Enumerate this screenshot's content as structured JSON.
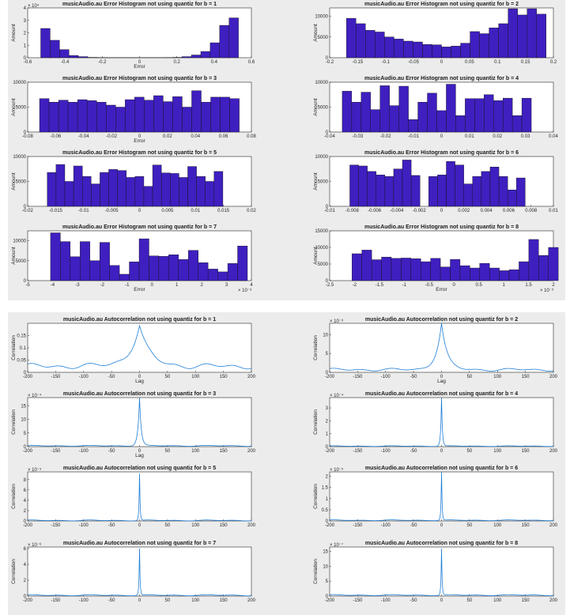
{
  "theme": {
    "bar_color": "#3f1fbf",
    "line_color": "#1f7ed6",
    "panel_bg": "#ececec"
  },
  "chart_data": [
    {
      "type": "bar",
      "title": "musicAudio.au Error Histogram not using quantiz for b = 1",
      "xlabel": "Error",
      "ylabel": "Amount",
      "xlim": [
        -0.6,
        0.6
      ],
      "ylim": [
        0,
        40000
      ],
      "yexp": "× 10⁴",
      "xexp": "",
      "xticks": [
        -0.6,
        -0.4,
        -0.2,
        0,
        0.2,
        0.4,
        0.6
      ],
      "yticks": [
        0,
        10000,
        20000,
        30000,
        40000
      ],
      "yticklabels": [
        "0",
        "1",
        "2",
        "3",
        "4"
      ],
      "xticklabels": [
        "-0.6",
        "-0.4",
        "-0.2",
        "0",
        "0.2",
        "0.4",
        "0.6"
      ],
      "bin_start": -0.53,
      "bin_width": 0.0505,
      "values": [
        23500,
        14000,
        6500,
        1800,
        900,
        300,
        150,
        100,
        100,
        100,
        100,
        100,
        100,
        150,
        300,
        900,
        2200,
        5000,
        12000,
        26000,
        32000
      ]
    },
    {
      "type": "bar",
      "title": "musicAudio.au Error Histogram not using quantiz for b = 2",
      "xlabel": "",
      "ylabel": "Amount",
      "xlim": [
        -0.2,
        0.2
      ],
      "ylim": [
        0,
        12000
      ],
      "yexp": "",
      "xexp": "",
      "xticks": [
        -0.2,
        -0.15,
        -0.1,
        -0.05,
        0,
        0.05,
        0.1,
        0.15,
        0.2
      ],
      "yticks": [
        0,
        5000,
        10000
      ],
      "yticklabels": [
        "0",
        "5000",
        "10000"
      ],
      "xticklabels": [
        "-0.2",
        "-0.15",
        "-0.1",
        "-0.05",
        "0",
        "0.05",
        "0.1",
        "0.15",
        "0.2"
      ],
      "bin_start": -0.17,
      "bin_width": 0.017,
      "values": [
        9500,
        8200,
        6600,
        6200,
        5000,
        4500,
        4000,
        3800,
        3200,
        3100,
        2600,
        2800,
        3500,
        6300,
        5800,
        7200,
        8200,
        11800,
        10300,
        11800,
        10500
      ]
    },
    {
      "type": "bar",
      "title": "musicAudio.au Error Histogram not using quantiz for b = 3",
      "xlabel": "Error",
      "ylabel": "Amount",
      "xlim": [
        -0.08,
        0.08
      ],
      "ylim": [
        0,
        10000
      ],
      "yexp": "",
      "xexp": "",
      "xticks": [
        -0.08,
        -0.06,
        -0.04,
        -0.02,
        0,
        0.02,
        0.04,
        0.06,
        0.08
      ],
      "yticks": [
        0,
        5000,
        10000
      ],
      "yticklabels": [
        "0",
        "5000",
        "10000"
      ],
      "xticklabels": [
        "-0.08",
        "-0.06",
        "-0.04",
        "-0.02",
        "0",
        "0.02",
        "0.04",
        "0.06",
        "0.08"
      ],
      "bin_start": -0.0715,
      "bin_width": 0.0068,
      "values": [
        6700,
        6000,
        6400,
        6000,
        6500,
        6300,
        6000,
        5400,
        5000,
        6500,
        7000,
        6400,
        7300,
        6100,
        7100,
        5000,
        8300,
        6000,
        7000,
        7000,
        6700
      ]
    },
    {
      "type": "bar",
      "title": "musicAudio.au Error Histogram not using quantiz for b = 4",
      "xlabel": "",
      "ylabel": "Amount",
      "xlim": [
        -0.04,
        0.04
      ],
      "ylim": [
        0,
        10000
      ],
      "yexp": "",
      "xexp": "",
      "xticks": [
        -0.04,
        -0.03,
        -0.02,
        -0.01,
        0,
        0.01,
        0.02,
        0.03,
        0.04
      ],
      "yticks": [
        0,
        5000,
        10000
      ],
      "yticklabels": [
        "0",
        "5000",
        "10000"
      ],
      "xticklabels": [
        "-0.04",
        "-0.03",
        "-0.02",
        "-0.01",
        "0",
        "0.01",
        "0.02",
        "0.03",
        "0.04"
      ],
      "bin_start": -0.0355,
      "bin_width": 0.00338,
      "values": [
        8200,
        6000,
        8000,
        4500,
        9300,
        5300,
        9200,
        2500,
        6000,
        7800,
        4300,
        9600,
        3300,
        6700,
        6700,
        7500,
        6300,
        6800,
        3300,
        6800,
        0
      ]
    },
    {
      "type": "bar",
      "title": "musicAudio.au Error Histogram not using quantiz for b = 5",
      "xlabel": "",
      "ylabel": "Amount",
      "xlim": [
        -0.02,
        0.02
      ],
      "ylim": [
        0,
        10000
      ],
      "yexp": "",
      "xexp": "",
      "xticks": [
        -0.02,
        -0.015,
        -0.01,
        -0.005,
        0,
        0.005,
        0.01,
        0.015,
        0.02
      ],
      "yticks": [
        0,
        5000,
        10000
      ],
      "yticklabels": [
        "0",
        "5000",
        "10000"
      ],
      "xticklabels": [
        "-0.02",
        "-0.015",
        "-0.01",
        "-0.005",
        "0",
        "0.005",
        "0.01",
        "0.015",
        "0.02"
      ],
      "bin_start": -0.0165,
      "bin_width": 0.00157,
      "values": [
        6800,
        8400,
        5000,
        8100,
        6000,
        4500,
        6800,
        7400,
        7200,
        5800,
        6000,
        4000,
        8300,
        6700,
        6600,
        5800,
        8000,
        6000,
        5000,
        7000,
        0
      ]
    },
    {
      "type": "bar",
      "title": "musicAudio.au Error Histogram not using quantiz for b = 6",
      "xlabel": "",
      "ylabel": "Amount",
      "xlim": [
        -0.01,
        0.01
      ],
      "ylim": [
        0,
        10000
      ],
      "yexp": "",
      "xexp": "",
      "xticks": [
        -0.01,
        -0.008,
        -0.006,
        -0.004,
        -0.002,
        0,
        0.002,
        0.004,
        0.006,
        0.008,
        0.01
      ],
      "yticks": [
        0,
        5000,
        10000
      ],
      "yticklabels": [
        "0",
        "5000",
        "10000"
      ],
      "xticklabels": [
        "-0.01",
        "-0.008",
        "-0.006",
        "-0.004",
        "-0.002",
        "0",
        "0.002",
        "0.004",
        "0.006",
        "0.008",
        "0.01"
      ],
      "bin_start": -0.0082,
      "bin_width": 0.000784,
      "values": [
        8300,
        8100,
        7000,
        6300,
        6000,
        7500,
        9300,
        6200,
        0,
        6000,
        6300,
        9000,
        8300,
        4500,
        6000,
        7000,
        7900,
        6000,
        3300,
        5700,
        0
      ]
    },
    {
      "type": "bar",
      "title": "musicAudio.au Error Histogram not using quantiz for b = 7",
      "xlabel": "Error",
      "ylabel": "Amount",
      "xlim": [
        -0.005,
        0.004
      ],
      "ylim": [
        0,
        12500
      ],
      "yexp": "",
      "xexp": "× 10⁻³",
      "xticks": [
        -0.005,
        -0.004,
        -0.003,
        -0.002,
        -0.001,
        0,
        0.001,
        0.002,
        0.003,
        0.004
      ],
      "yticks": [
        0,
        5000,
        10000
      ],
      "yticklabels": [
        "0",
        "5000",
        "10000"
      ],
      "xticklabels": [
        "-5",
        "-4",
        "-3",
        "-2",
        "-1",
        "0",
        "1",
        "2",
        "3",
        "4"
      ],
      "bin_start": -0.00408,
      "bin_width": 0.000396,
      "values": [
        12000,
        9800,
        6000,
        9800,
        5000,
        9600,
        3800,
        1600,
        4700,
        10500,
        6200,
        6100,
        6500,
        5300,
        7600,
        4500,
        2900,
        2200,
        4300,
        8700
      ]
    },
    {
      "type": "bar",
      "title": "musicAudio.au Error Histogram not using quantiz for b = 8",
      "xlabel": "Error",
      "ylabel": "Amount",
      "xlim": [
        -0.0025,
        0.002
      ],
      "ylim": [
        0,
        15000
      ],
      "yexp": "",
      "xexp": "× 10⁻³",
      "xticks": [
        -0.0025,
        -0.002,
        -0.0015,
        -0.001,
        -0.0005,
        0,
        0.0005,
        0.001,
        0.0015,
        0.002
      ],
      "yticks": [
        0,
        5000,
        10000,
        15000
      ],
      "yticklabels": [
        "0",
        "5000",
        "10000",
        "15000"
      ],
      "xticklabels": [
        "-2.5",
        "-2",
        "-1.5",
        "-1",
        "-0.5",
        "0",
        "0.5",
        "1",
        "1.5",
        "2"
      ],
      "bin_start": -0.00205,
      "bin_width": 0.0001975,
      "values": [
        8100,
        9200,
        6300,
        7100,
        6700,
        6800,
        6600,
        5700,
        6700,
        4100,
        6400,
        4500,
        3800,
        5200,
        3800,
        3000,
        3300,
        5700,
        12400,
        7600,
        10000
      ]
    },
    {
      "type": "line",
      "title": "musicAudio.au Autocorrelation not using quantiz for b = 1",
      "xlabel": "Lag",
      "ylabel": "Correlation",
      "xlim": [
        -200,
        200
      ],
      "ylim": [
        0,
        0.2
      ],
      "yexp": "",
      "peak": 0.19,
      "base": 0.025,
      "halfwidth": 18,
      "wobble": 0.012,
      "xticks": [
        -200,
        -150,
        -100,
        -50,
        0,
        50,
        100,
        150,
        200
      ],
      "yticks": [
        0,
        0.05,
        0.1,
        0.15
      ],
      "yticklabels": [
        "0",
        "0.05",
        "0.1",
        "0.15"
      ],
      "xticklabels": [
        "-200",
        "-150",
        "-100",
        "-50",
        "0",
        "50",
        "100",
        "150",
        "200"
      ]
    },
    {
      "type": "line",
      "title": "musicAudio.au Autocorrelation not using quantiz for b = 2",
      "xlabel": "Lag",
      "ylabel": "Correlation",
      "xlim": [
        -200,
        200
      ],
      "ylim": [
        0,
        0.013
      ],
      "yexp": "× 10⁻³",
      "peak": 0.013,
      "base": 0.0007,
      "halfwidth": 10,
      "wobble": 0.0004,
      "xticks": [
        -200,
        -150,
        -100,
        -50,
        0,
        50,
        100,
        150,
        200
      ],
      "yticks": [
        0,
        0.005,
        0.01
      ],
      "yticklabels": [
        "0",
        "5",
        "10"
      ],
      "xticklabels": [
        "-200",
        "-150",
        "-100",
        "-50",
        "0",
        "50",
        "100",
        "150",
        "200"
      ]
    },
    {
      "type": "line",
      "title": "musicAudio.au Autocorrelation not using quantiz for b = 3",
      "xlabel": "Lag",
      "ylabel": "Correlation",
      "xlim": [
        -200,
        200
      ],
      "ylim": [
        0,
        0.0018
      ],
      "yexp": "× 10⁻⁴",
      "peak": 0.0018,
      "base": 3e-05,
      "halfwidth": 3,
      "wobble": 2e-05,
      "xticks": [
        -200,
        -150,
        -100,
        -50,
        0,
        50,
        100,
        150,
        200
      ],
      "yticks": [
        0,
        0.0005,
        0.001,
        0.0015
      ],
      "yticklabels": [
        "0",
        "5",
        "10",
        "15"
      ],
      "xticklabels": [
        "-200",
        "-150",
        "-100",
        "-50",
        "0",
        "50",
        "100",
        "150",
        "200"
      ]
    },
    {
      "type": "line",
      "title": "musicAudio.au Autocorrelation not using quantiz for b = 4",
      "xlabel": "",
      "ylabel": "Correlation",
      "xlim": [
        -200,
        200
      ],
      "ylim": [
        0,
        0.00038
      ],
      "yexp": "× 10⁻⁴",
      "peak": 0.00038,
      "base": 4e-06,
      "halfwidth": 1.5,
      "wobble": 3e-06,
      "xticks": [
        -200,
        -150,
        -100,
        -50,
        0,
        50,
        100,
        150,
        200
      ],
      "yticks": [
        0,
        0.0001,
        0.0002,
        0.0003
      ],
      "yticklabels": [
        "0",
        "1",
        "2",
        "3"
      ],
      "xticklabels": [
        "-200",
        "-150",
        "-100",
        "-50",
        "0",
        "50",
        "100",
        "150",
        "200"
      ]
    },
    {
      "type": "line",
      "title": "musicAudio.au Autocorrelation not using quantiz for b = 5",
      "xlabel": "",
      "ylabel": "Correlation",
      "xlim": [
        -200,
        200
      ],
      "ylim": [
        0,
        9.5e-05
      ],
      "yexp": "× 10⁻⁵",
      "peak": 9.2e-05,
      "base": 1e-06,
      "halfwidth": 1,
      "wobble": 1e-06,
      "xticks": [
        -200,
        -150,
        -100,
        -50,
        0,
        50,
        100,
        150,
        200
      ],
      "yticks": [
        0,
        2e-05,
        4e-05,
        6e-05,
        8e-05
      ],
      "yticklabels": [
        "0",
        "2",
        "4",
        "6",
        "8"
      ],
      "xticklabels": [
        "-200",
        "-150",
        "-100",
        "-50",
        "0",
        "50",
        "100",
        "150",
        "200"
      ]
    },
    {
      "type": "line",
      "title": "musicAudio.au Autocorrelation not using quantiz for b = 6",
      "xlabel": "",
      "ylabel": "Correlation",
      "xlim": [
        -200,
        200
      ],
      "ylim": [
        0,
        2.2e-05
      ],
      "yexp": "× 10⁻⁵",
      "peak": 2.2e-05,
      "base": 3e-07,
      "halfwidth": 1,
      "wobble": 2e-07,
      "xticks": [
        -200,
        -150,
        -100,
        -50,
        0,
        50,
        100,
        150,
        200
      ],
      "yticks": [
        0,
        5e-06,
        1e-05,
        1.5e-05,
        2e-05
      ],
      "yticklabels": [
        "0",
        "0.5",
        "1",
        "1.5",
        "2"
      ],
      "xticklabels": [
        "-200",
        "-150",
        "-100",
        "-50",
        "0",
        "50",
        "100",
        "150",
        "200"
      ]
    },
    {
      "type": "line",
      "title": "musicAudio.au Autocorrelation not using quantiz for b = 7",
      "xlabel": "",
      "ylabel": "Correlation",
      "xlim": [
        -200,
        200
      ],
      "ylim": [
        0,
        6.2e-06
      ],
      "yexp": "× 10⁻⁶",
      "peak": 6e-06,
      "base": 1e-07,
      "halfwidth": 1,
      "wobble": 8e-08,
      "xticks": [
        -200,
        -150,
        -100,
        -50,
        0,
        50,
        100,
        150,
        200
      ],
      "yticks": [
        0,
        2e-06,
        4e-06,
        6e-06
      ],
      "yticklabels": [
        "0",
        "2",
        "4",
        "6"
      ],
      "xticklabels": [
        "-200",
        "-150",
        "-100",
        "-50",
        "0",
        "50",
        "100",
        "150",
        "200"
      ]
    },
    {
      "type": "line",
      "title": "musicAudio.au Autocorrelation not using quantiz for b = 8",
      "xlabel": "",
      "ylabel": "Correlation",
      "xlim": [
        -200,
        200
      ],
      "ylim": [
        0,
        1.65e-06
      ],
      "yexp": "× 10⁻⁷",
      "peak": 1.6e-06,
      "base": 3e-08,
      "halfwidth": 1,
      "wobble": 2e-08,
      "xticks": [
        -200,
        -150,
        -100,
        -50,
        0,
        50,
        100,
        150,
        200
      ],
      "yticks": [
        0,
        5e-07,
        1e-06,
        1.5e-06
      ],
      "yticklabels": [
        "0",
        "5",
        "10",
        "15"
      ],
      "xticklabels": [
        "-200",
        "-150",
        "-100",
        "-50",
        "0",
        "50",
        "100",
        "150",
        "200"
      ]
    }
  ]
}
